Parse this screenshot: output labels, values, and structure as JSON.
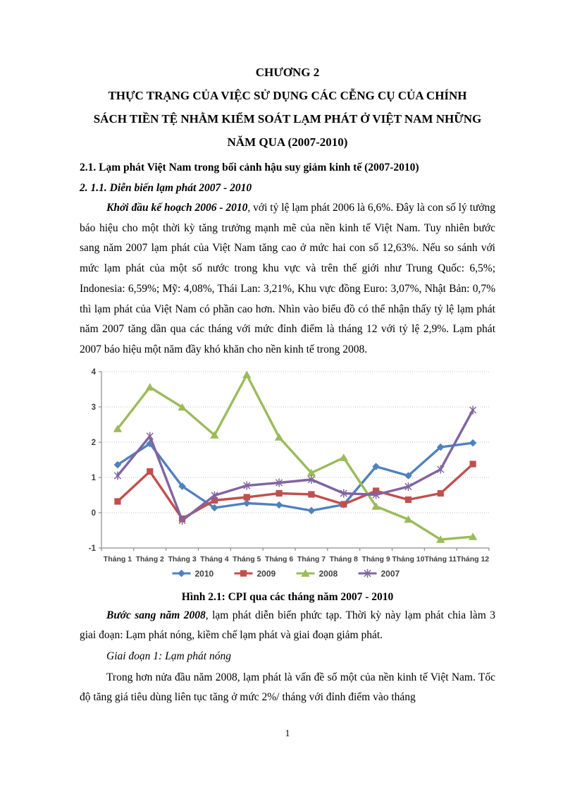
{
  "doc": {
    "chapter_title": "CHƯƠNG 2",
    "title_lines": [
      "THỰC TRẠNG CỦA VIỆC SỬ DỤNG CÁC CỄNG CỤ CỦA CHÍNH",
      "SÁCH TIỀN TỆ NHẰM KIỂM SOÁT LẠM PHÁT Ở VIỆT NAM NHỮNG",
      "NĂM QUA (2007-2010)"
    ],
    "section_heading": "2.1. Lạm phát Việt Nam trong bối cảnh hậu suy giảm kinh tế (2007-2010)",
    "subsection_heading": "2. 1.1. Diễn biến lạm phát 2007 - 2010",
    "paragraph1_lead": "Khởi đầu kế hoạch 2006 - 2010",
    "paragraph1_rest": ", với tỷ lệ lạm phát 2006 là 6,6%. Đây là con số lý tưởng báo hiệu cho một thời kỳ tăng trưởng mạnh mẽ của nền kinh tế Việt Nam. Tuy nhiên bước sang năm 2007 lạm phát của Việt Nam tăng cao ở mức hai con số 12,63%. Nếu so sánh với mức lạm phát của một số nước trong khu vực và trên thế giới như Trung Quốc: 6,5%; Indonesia: 6,59%; Mỹ: 4,08%, Thái Lan: 3,21%, Khu vực đồng Euro: 3,07%, Nhật Bản: 0,7% thì lạm phát của Việt Nam có phần cao hơn. Nhìn vào biểu đồ có thể nhận thấy tỷ lệ lạm phát năm 2007 tăng dần qua các tháng với mức đỉnh điểm là tháng 12 với tỷ lệ 2,9%. Lạm phát 2007 báo hiệu một năm đầy khó khăn cho nền kinh tế trong 2008.",
    "figure_caption": "Hình 2.1: CPI qua các tháng năm 2007 - 2010",
    "paragraph2_lead": "Bước sang năm 2008",
    "paragraph2_rest": ", lạm phát diễn biến phức tạp. Thời kỳ này lạm phát chia làm 3 giai đoạn: Lạm phát nóng, kiềm chế lạm phát và giai đoạn giảm phát.",
    "stage_heading": "Giai đoạn 1: Lạm phát nóng",
    "paragraph3": "Trong hơn nửa đầu năm 2008, lạm phát  là vấn  đề số một của nền kinh  tế Việt Nam.  Tốc độ tăng giá tiêu dùng  liên tục tăng  ở mức 2%/ tháng  với đỉnh điểm vào tháng",
    "page_number": "1"
  },
  "chart_data": {
    "type": "line",
    "title": "",
    "xlabel": "",
    "ylabel": "",
    "categories": [
      "Tháng 1",
      "Tháng 2",
      "Tháng 3",
      "Tháng 4",
      "Tháng 5",
      "Tháng 6",
      "Tháng 7",
      "Tháng 8",
      "Tháng 9",
      "Tháng 10",
      "Tháng 11",
      "Tháng 12"
    ],
    "series": [
      {
        "name": "2010",
        "color": "#4F81BD",
        "marker": "diamond",
        "values": [
          1.36,
          1.96,
          0.75,
          0.14,
          0.27,
          0.22,
          0.06,
          0.23,
          1.31,
          1.05,
          1.86,
          1.98
        ]
      },
      {
        "name": "2009",
        "color": "#C0504D",
        "marker": "square",
        "values": [
          0.32,
          1.17,
          -0.17,
          0.35,
          0.44,
          0.55,
          0.52,
          0.24,
          0.62,
          0.37,
          0.55,
          1.38
        ]
      },
      {
        "name": "2008",
        "color": "#9BBB59",
        "marker": "triangle",
        "values": [
          2.38,
          3.56,
          2.99,
          2.2,
          3.91,
          2.14,
          1.13,
          1.56,
          0.18,
          -0.19,
          -0.76,
          -0.68
        ]
      },
      {
        "name": "2007",
        "color": "#8064A2",
        "marker": "star",
        "values": [
          1.05,
          2.17,
          -0.22,
          0.49,
          0.77,
          0.85,
          0.94,
          0.55,
          0.51,
          0.74,
          1.23,
          2.91
        ]
      }
    ],
    "ylim": [
      -1,
      4
    ],
    "yticks": [
      4,
      3,
      2,
      1,
      0,
      -1
    ],
    "grid": true,
    "legend_position": "bottom",
    "gridline_color": "#bfbfbf",
    "axis_color": "#8c8c8c",
    "label_color": "#3f3f3f"
  }
}
